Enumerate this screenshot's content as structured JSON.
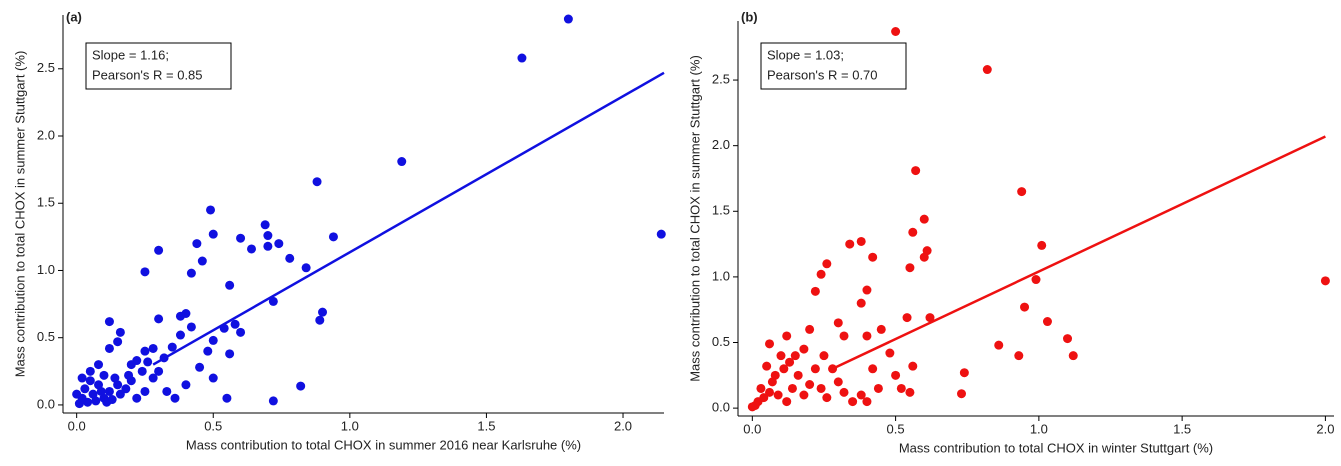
{
  "chart_data": [
    {
      "type": "scatter",
      "panel_label": "(a)",
      "x_label": "Mass contribution to total CHOX in summer 2016 near Karlsruhe (%)",
      "y_label": "Mass contribution to total CHOX in summer Stuttgart (%)",
      "annotations": [
        "Slope = 1.16;",
        "Pearson's R = 0.85"
      ],
      "color": "#1010e0",
      "xlim": [
        -0.05,
        2.15
      ],
      "ylim": [
        -0.06,
        2.9
      ],
      "xticks": [
        {
          "value": 0,
          "label": "0.0"
        },
        0.5,
        {
          "value": 1,
          "label": "1.0"
        },
        1.5,
        {
          "value": 2,
          "label": "2.0"
        }
      ],
      "yticks": [
        {
          "value": 0,
          "label": "0.0"
        },
        0.5,
        {
          "value": 1,
          "label": "1.0"
        },
        1.5,
        {
          "value": 2,
          "label": "2.0"
        },
        2.5
      ],
      "x": [
        2.14,
        1.8,
        1.63,
        1.19,
        0.88,
        0.94,
        0.9,
        0.89,
        0.84,
        0.82,
        0.78,
        0.72,
        0.72,
        0.74,
        0.7,
        0.69,
        0.7,
        0.64,
        0.6,
        0.56,
        0.6,
        0.58,
        0.56,
        0.55,
        0.54,
        0.5,
        0.49,
        0.46,
        0.42,
        0.44,
        0.5,
        0.48,
        0.4,
        0.42,
        0.38,
        0.38,
        0.35,
        0.3,
        0.25,
        0.3,
        0.28,
        0.25,
        0.22,
        0.2,
        0.16,
        0.15,
        0.12,
        0.12,
        0.08,
        0.1,
        0.05,
        0.02,
        0.03,
        0.06,
        0.08,
        0.1,
        0.12,
        0.14,
        0.16,
        0.18,
        0.2,
        0.22,
        0.25,
        0.28,
        0.3,
        0.33,
        0.36,
        0.4,
        0.45,
        0.5,
        0.01,
        0.04,
        0.07,
        0.09,
        0.11,
        0.13,
        0.15,
        0.0,
        0.02,
        0.05,
        0.19,
        0.24,
        0.26,
        0.32
      ],
      "values": [
        1.27,
        2.87,
        2.58,
        1.81,
        1.66,
        1.25,
        0.69,
        0.63,
        1.02,
        0.14,
        1.09,
        0.03,
        0.77,
        1.2,
        1.18,
        1.34,
        1.26,
        1.16,
        1.24,
        0.89,
        0.54,
        0.6,
        0.38,
        0.05,
        0.57,
        1.27,
        1.45,
        1.07,
        0.98,
        1.2,
        0.48,
        0.4,
        0.68,
        0.58,
        0.66,
        0.52,
        0.43,
        1.15,
        0.99,
        0.64,
        0.42,
        0.4,
        0.33,
        0.3,
        0.54,
        0.47,
        0.42,
        0.62,
        0.3,
        0.22,
        0.18,
        0.05,
        0.12,
        0.08,
        0.15,
        0.05,
        0.1,
        0.2,
        0.08,
        0.12,
        0.18,
        0.05,
        0.1,
        0.2,
        0.25,
        0.1,
        0.05,
        0.15,
        0.28,
        0.2,
        0.01,
        0.02,
        0.03,
        0.1,
        0.02,
        0.04,
        0.15,
        0.08,
        0.2,
        0.25,
        0.22,
        0.25,
        0.32,
        0.35
      ],
      "fit": {
        "x": [
          0.28,
          2.15
        ],
        "values": [
          0.3,
          2.47
        ]
      }
    },
    {
      "type": "scatter",
      "panel_label": "(b)",
      "x_label": "Mass contribution to total CHOX in winter Stuttgart (%)",
      "y_label": "Mass contribution to total CHOX in summer Stuttgart (%)",
      "annotations": [
        "Slope = 1.03;",
        "Pearson's R = 0.70"
      ],
      "color": "#ee1111",
      "xlim": [
        -0.05,
        2.03
      ],
      "ylim": [
        -0.06,
        2.95
      ],
      "xticks": [
        {
          "value": 0,
          "label": "0.0"
        },
        0.5,
        {
          "value": 1,
          "label": "1.0"
        },
        1.5,
        {
          "value": 2,
          "label": "2.0"
        }
      ],
      "yticks": [
        {
          "value": 0,
          "label": "0.0"
        },
        0.5,
        {
          "value": 1,
          "label": "1.0"
        },
        1.5,
        {
          "value": 2,
          "label": "2.0"
        },
        2.5
      ],
      "x": [
        0.5,
        0.82,
        2.0,
        0.57,
        0.94,
        1.01,
        0.99,
        0.95,
        1.03,
        1.1,
        1.12,
        0.93,
        0.86,
        0.74,
        0.73,
        0.6,
        0.61,
        0.6,
        0.56,
        0.55,
        0.62,
        0.54,
        0.56,
        0.55,
        0.42,
        0.38,
        0.34,
        0.38,
        0.4,
        0.4,
        0.42,
        0.44,
        0.38,
        0.4,
        0.3,
        0.32,
        0.26,
        0.24,
        0.22,
        0.2,
        0.18,
        0.25,
        0.28,
        0.3,
        0.32,
        0.35,
        0.12,
        0.1,
        0.06,
        0.05,
        0.08,
        0.03,
        0.02,
        0.01,
        0.04,
        0.06,
        0.09,
        0.12,
        0.14,
        0.16,
        0.18,
        0.2,
        0.22,
        0.24,
        0.26,
        0.0,
        0.07,
        0.11,
        0.13,
        0.15,
        0.48,
        0.5,
        0.45,
        0.52
      ],
      "values": [
        2.87,
        2.58,
        0.97,
        1.81,
        1.65,
        1.24,
        0.98,
        0.77,
        0.66,
        0.53,
        0.4,
        0.4,
        0.48,
        0.27,
        0.11,
        1.44,
        1.2,
        1.15,
        1.34,
        1.07,
        0.69,
        0.69,
        0.32,
        0.12,
        1.15,
        1.27,
        1.25,
        0.8,
        0.9,
        0.55,
        0.3,
        0.15,
        0.1,
        0.05,
        0.65,
        0.55,
        1.1,
        1.02,
        0.89,
        0.6,
        0.45,
        0.4,
        0.3,
        0.2,
        0.12,
        0.05,
        0.55,
        0.4,
        0.49,
        0.32,
        0.25,
        0.15,
        0.05,
        0.02,
        0.08,
        0.12,
        0.1,
        0.05,
        0.15,
        0.25,
        0.1,
        0.18,
        0.3,
        0.15,
        0.08,
        0.01,
        0.2,
        0.3,
        0.35,
        0.4,
        0.42,
        0.25,
        0.6,
        0.15
      ],
      "fit": {
        "x": [
          0.28,
          2.0
        ],
        "values": [
          0.3,
          2.07
        ]
      }
    }
  ]
}
